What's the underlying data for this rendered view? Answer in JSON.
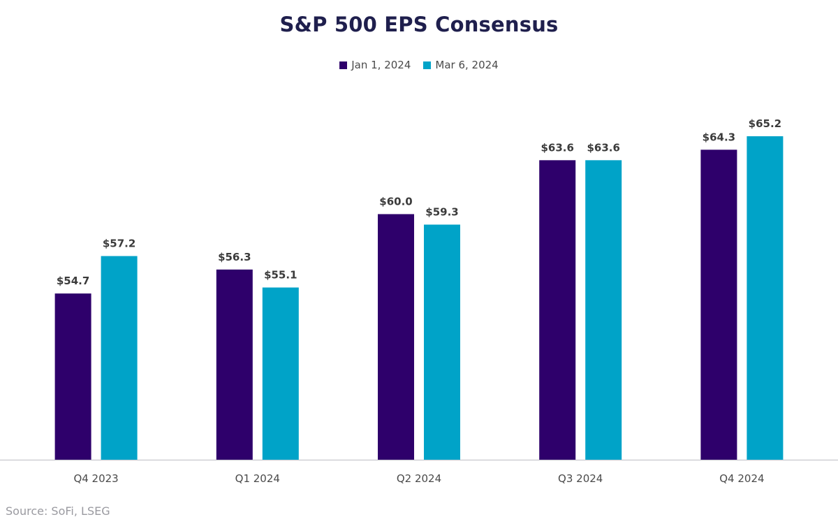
{
  "chart_data": {
    "type": "bar",
    "title": "S&P 500 EPS Consensus",
    "categories": [
      "Q4 2023",
      "Q1 2024",
      "Q2 2024",
      "Q3 2024",
      "Q4 2024"
    ],
    "series": [
      {
        "name": "Jan 1, 2024",
        "color": "#2e006b",
        "values": [
          54.7,
          56.3,
          60.0,
          63.6,
          64.3
        ],
        "labels": [
          "$54.7",
          "$56.3",
          "$60.0",
          "$63.6",
          "$64.3"
        ]
      },
      {
        "name": "Mar 6, 2024",
        "color": "#00a3c8",
        "values": [
          57.2,
          55.1,
          59.3,
          63.6,
          65.2
        ],
        "labels": [
          "$57.2",
          "$55.1",
          "$59.3",
          "$63.6",
          "$65.2"
        ]
      }
    ],
    "xlabel": "",
    "ylabel": "",
    "ylim": [
      43.6,
      68.7
    ],
    "grid": false,
    "legend_position": "top"
  },
  "footer": {
    "source": "Source: SoFi, LSEG"
  }
}
